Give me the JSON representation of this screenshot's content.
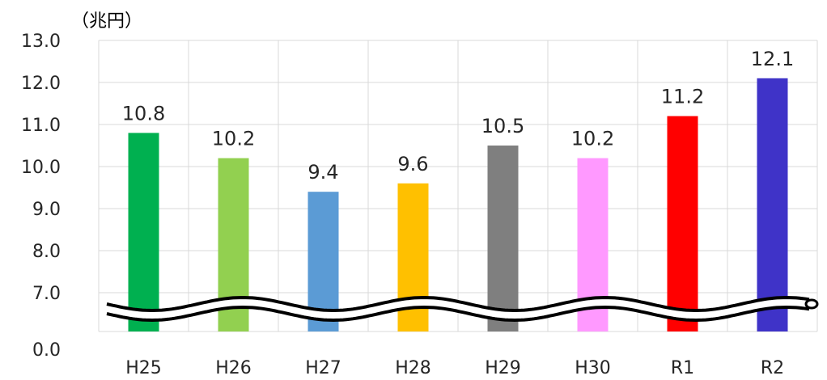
{
  "chart_data": {
    "type": "bar",
    "unit_label": "（兆円）",
    "categories": [
      "H25",
      "H26",
      "H27",
      "H28",
      "H29",
      "H30",
      "R1",
      "R2"
    ],
    "values": [
      10.8,
      10.2,
      9.4,
      9.6,
      10.5,
      10.2,
      11.2,
      12.1
    ],
    "value_labels": [
      "10.8",
      "10.2",
      "9.4",
      "9.6",
      "10.5",
      "10.2",
      "11.2",
      "12.1"
    ],
    "bar_colors": [
      "#00B050",
      "#92D050",
      "#5B9BD5",
      "#FFC000",
      "#7F7F7F",
      "#FF99FF",
      "#FF0000",
      "#3F33C8"
    ],
    "y_ticks": [
      "13.0",
      "12.0",
      "11.0",
      "10.0",
      "9.0",
      "8.0",
      "7.0",
      "0.0"
    ],
    "y_tick_values": [
      13,
      12,
      11,
      10,
      9,
      8,
      7,
      0
    ],
    "ylim": [
      7,
      13
    ],
    "axis_break": true,
    "grid": true,
    "xlabel": "",
    "ylabel": ""
  }
}
